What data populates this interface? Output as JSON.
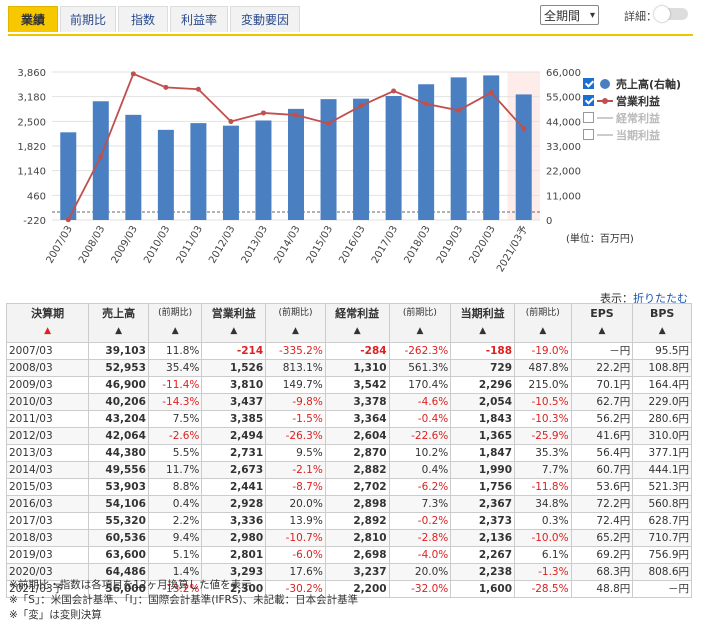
{
  "tabs": [
    "業績",
    "前期比",
    "指数",
    "利益率",
    "変動要因"
  ],
  "controls": {
    "period": "全期間",
    "detail_label": "詳細："
  },
  "colors": {
    "bar": "#4a7fc2",
    "line": "#c0504d",
    "forecast_band": "#fdecea",
    "accent": "#f7c800",
    "negative": "#e02020"
  },
  "chart_data": {
    "type": "bar",
    "categories": [
      "2007/03",
      "2008/03",
      "2009/03",
      "2010/03",
      "2011/03",
      "2012/03",
      "2013/03",
      "2014/03",
      "2015/03",
      "2016/03",
      "2017/03",
      "2018/03",
      "2019/03",
      "2020/03",
      "2021/03予"
    ],
    "series": [
      {
        "name": "売上高(右軸)",
        "type": "bar",
        "axis": "right",
        "values": [
          39103,
          52953,
          46900,
          40206,
          43204,
          42064,
          44380,
          49556,
          53903,
          54106,
          55320,
          60536,
          63600,
          64486,
          56000
        ]
      },
      {
        "name": "営業利益",
        "type": "line",
        "axis": "left",
        "values": [
          -214,
          1526,
          3810,
          3437,
          3385,
          2494,
          2731,
          2673,
          2441,
          2928,
          3336,
          2980,
          2801,
          3293,
          2300
        ]
      }
    ],
    "left_ticks": [
      "3,860",
      "3,180",
      "2,500",
      "1,820",
      "1,140",
      "460",
      "-220"
    ],
    "left_ylim": [
      -220,
      3860
    ],
    "right_ticks": [
      "66,000",
      "55,000",
      "44,000",
      "33,000",
      "22,000",
      "11,000",
      "0"
    ],
    "right_ylim": [
      0,
      66000
    ],
    "forecast_index": 14,
    "unit_label": "(単位：百万円)"
  },
  "legend": [
    {
      "label": "売上高(右軸)",
      "checked": true,
      "symbol": "dot"
    },
    {
      "label": "営業利益",
      "checked": true,
      "symbol": "line"
    },
    {
      "label": "経常利益",
      "checked": false,
      "symbol": "line"
    },
    {
      "label": "当期利益",
      "checked": false,
      "symbol": "line"
    }
  ],
  "table": {
    "display_label": "表示：",
    "fold_label": "折りたたむ",
    "headers": [
      {
        "label": "決算期",
        "sort": "▲"
      },
      {
        "label": "売上高",
        "sort": "▲"
      },
      {
        "label": "(前期比)",
        "sort": "▲",
        "small": true
      },
      {
        "label": "営業利益",
        "sort": "▲"
      },
      {
        "label": "(前期比)",
        "sort": "▲",
        "small": true
      },
      {
        "label": "経常利益",
        "sort": "▲"
      },
      {
        "label": "(前期比)",
        "sort": "▲",
        "small": true
      },
      {
        "label": "当期利益",
        "sort": "▲"
      },
      {
        "label": "(前期比)",
        "sort": "▲",
        "small": true
      },
      {
        "label": "EPS",
        "sort": "▲"
      },
      {
        "label": "BPS",
        "sort": "▲"
      }
    ],
    "rows": [
      [
        "2007/03",
        "39,103",
        "11.8%",
        "-214",
        "-335.2%",
        "-284",
        "-262.3%",
        "-188",
        "-19.0%",
        "－円",
        "95.5円"
      ],
      [
        "2008/03",
        "52,953",
        "35.4%",
        "1,526",
        "813.1%",
        "1,310",
        "561.3%",
        "729",
        "487.8%",
        "22.2円",
        "108.8円"
      ],
      [
        "2009/03",
        "46,900",
        "-11.4%",
        "3,810",
        "149.7%",
        "3,542",
        "170.4%",
        "2,296",
        "215.0%",
        "70.1円",
        "164.4円"
      ],
      [
        "2010/03",
        "40,206",
        "-14.3%",
        "3,437",
        "-9.8%",
        "3,378",
        "-4.6%",
        "2,054",
        "-10.5%",
        "62.7円",
        "229.0円"
      ],
      [
        "2011/03",
        "43,204",
        "7.5%",
        "3,385",
        "-1.5%",
        "3,364",
        "-0.4%",
        "1,843",
        "-10.3%",
        "56.2円",
        "280.6円"
      ],
      [
        "2012/03",
        "42,064",
        "-2.6%",
        "2,494",
        "-26.3%",
        "2,604",
        "-22.6%",
        "1,365",
        "-25.9%",
        "41.6円",
        "310.0円"
      ],
      [
        "2013/03",
        "44,380",
        "5.5%",
        "2,731",
        "9.5%",
        "2,870",
        "10.2%",
        "1,847",
        "35.3%",
        "56.4円",
        "377.1円"
      ],
      [
        "2014/03",
        "49,556",
        "11.7%",
        "2,673",
        "-2.1%",
        "2,882",
        "0.4%",
        "1,990",
        "7.7%",
        "60.7円",
        "444.1円"
      ],
      [
        "2015/03",
        "53,903",
        "8.8%",
        "2,441",
        "-8.7%",
        "2,702",
        "-6.2%",
        "1,756",
        "-11.8%",
        "53.6円",
        "521.3円"
      ],
      [
        "2016/03",
        "54,106",
        "0.4%",
        "2,928",
        "20.0%",
        "2,898",
        "7.3%",
        "2,367",
        "34.8%",
        "72.2円",
        "560.8円"
      ],
      [
        "2017/03",
        "55,320",
        "2.2%",
        "3,336",
        "13.9%",
        "2,892",
        "-0.2%",
        "2,373",
        "0.3%",
        "72.4円",
        "628.7円"
      ],
      [
        "2018/03",
        "60,536",
        "9.4%",
        "2,980",
        "-10.7%",
        "2,810",
        "-2.8%",
        "2,136",
        "-10.0%",
        "65.2円",
        "710.7円"
      ],
      [
        "2019/03",
        "63,600",
        "5.1%",
        "2,801",
        "-6.0%",
        "2,698",
        "-4.0%",
        "2,267",
        "6.1%",
        "69.2円",
        "756.9円"
      ],
      [
        "2020/03",
        "64,486",
        "1.4%",
        "3,293",
        "17.6%",
        "3,237",
        "20.0%",
        "2,238",
        "-1.3%",
        "68.3円",
        "808.6円"
      ],
      [
        "2021/03予",
        "56,000",
        "-13.2%",
        "2,300",
        "-30.2%",
        "2,200",
        "-32.0%",
        "1,600",
        "-28.5%",
        "48.8円",
        "－円"
      ]
    ]
  },
  "notes": [
    "※前期比・指数は各項目を12ヶ月換算した値を表示",
    "※「S」：米国会計基準、「I」：国際会計基準(IFRS)、未記載：日本会計基準",
    "※「変」は変則決算"
  ]
}
